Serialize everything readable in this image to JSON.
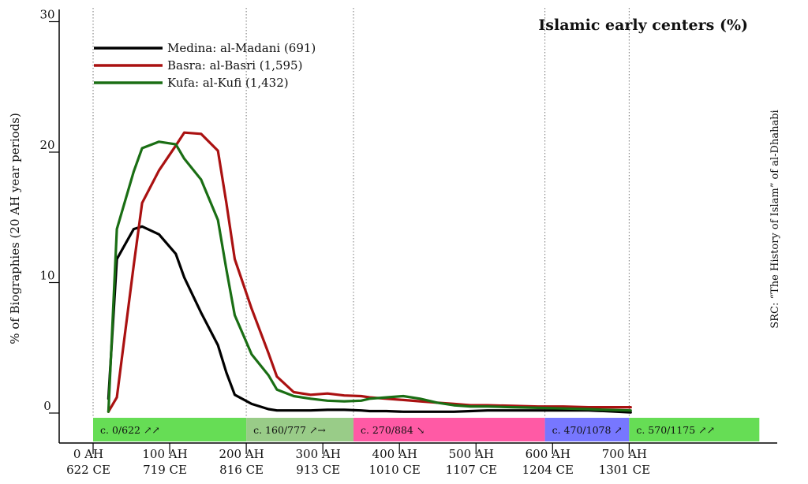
{
  "chart_data": {
    "type": "line",
    "title": "Islamic early centers (%)",
    "ylabel": "% of Biographies (20 AH year periods)",
    "source": "SRC: “The History of Islam” of al-Dhahabi",
    "ylim": [
      0,
      30
    ],
    "xlim": [
      0,
      720
    ],
    "yticks": [
      {
        "value": 0,
        "label": "0"
      },
      {
        "value": 10,
        "label": "10"
      },
      {
        "value": 20,
        "label": "20"
      },
      {
        "value": 30,
        "label": "30"
      }
    ],
    "xticks": [
      {
        "value": 0,
        "line1": "0 AH",
        "line2": "622 CE"
      },
      {
        "value": 100,
        "line1": "100 AH",
        "line2": "719 CE"
      },
      {
        "value": 200,
        "line1": "200 AH",
        "line2": "816 CE"
      },
      {
        "value": 300,
        "line1": "300 AH",
        "line2": "913 CE"
      },
      {
        "value": 400,
        "line1": "400 AH",
        "line2": "1010 CE"
      },
      {
        "value": 500,
        "line1": "500 AH",
        "line2": "1107 CE"
      },
      {
        "value": 600,
        "line1": "600 AH",
        "line2": "1204 CE"
      },
      {
        "value": 700,
        "line1": "700 AH",
        "line2": "1301 CE"
      }
    ],
    "grid_vlines": [
      0,
      200,
      340,
      590,
      700
    ],
    "x": [
      20,
      31,
      53,
      64,
      86,
      108,
      119,
      141,
      163,
      174,
      185,
      207,
      229,
      240,
      262,
      284,
      306,
      328,
      350,
      361,
      383,
      405,
      427,
      449,
      471,
      493,
      515,
      548,
      581,
      614,
      647,
      669,
      702
    ],
    "series": [
      {
        "name": "Medina: al-Madani (691)",
        "color": "#000000",
        "values": [
          1.1,
          11.8,
          14.1,
          14.3,
          13.7,
          12.2,
          10.4,
          7.7,
          5.2,
          3.1,
          1.4,
          0.7,
          0.3,
          0.2,
          0.2,
          0.2,
          0.25,
          0.25,
          0.2,
          0.15,
          0.15,
          0.1,
          0.1,
          0.1,
          0.1,
          0.15,
          0.2,
          0.2,
          0.2,
          0.2,
          0.2,
          0.15,
          0.05
        ]
      },
      {
        "name": "Basra: al-Basri (1,595)",
        "color": "#aa1111",
        "values": [
          0.1,
          1.2,
          11.3,
          16.1,
          18.6,
          20.5,
          21.5,
          21.4,
          20.1,
          16.1,
          11.8,
          8.0,
          4.6,
          2.8,
          1.6,
          1.4,
          1.5,
          1.35,
          1.3,
          1.2,
          1.1,
          1.0,
          0.9,
          0.8,
          0.7,
          0.6,
          0.6,
          0.55,
          0.5,
          0.5,
          0.45,
          0.45,
          0.45
        ]
      },
      {
        "name": "Kufa: al-Kufi (1,432)",
        "color": "#1a6e14",
        "values": [
          0.1,
          14.1,
          18.5,
          20.3,
          20.8,
          20.6,
          19.5,
          17.9,
          14.8,
          11.0,
          7.5,
          4.5,
          2.9,
          1.8,
          1.3,
          1.1,
          0.95,
          0.9,
          0.95,
          1.1,
          1.2,
          1.3,
          1.1,
          0.8,
          0.6,
          0.5,
          0.5,
          0.45,
          0.4,
          0.35,
          0.3,
          0.25,
          0.2
        ]
      }
    ],
    "bands": [
      {
        "start": 0,
        "end": 200,
        "label": "c. 0/622 ↗↗",
        "color": "#66dd55"
      },
      {
        "start": 200,
        "end": 340,
        "label": "c. 160/777 ↗→",
        "color": "#99cc88"
      },
      {
        "start": 340,
        "end": 590,
        "label": "c. 270/884 ↘",
        "color": "#ff5aa5"
      },
      {
        "start": 590,
        "end": 700,
        "label": "c. 470/1078 ↗",
        "color": "#7777ff"
      },
      {
        "start": 700,
        "end": 870,
        "label": "c. 570/1175 ↗↗",
        "color": "#66dd55"
      }
    ],
    "legend_position": "top-left",
    "grid": false
  }
}
